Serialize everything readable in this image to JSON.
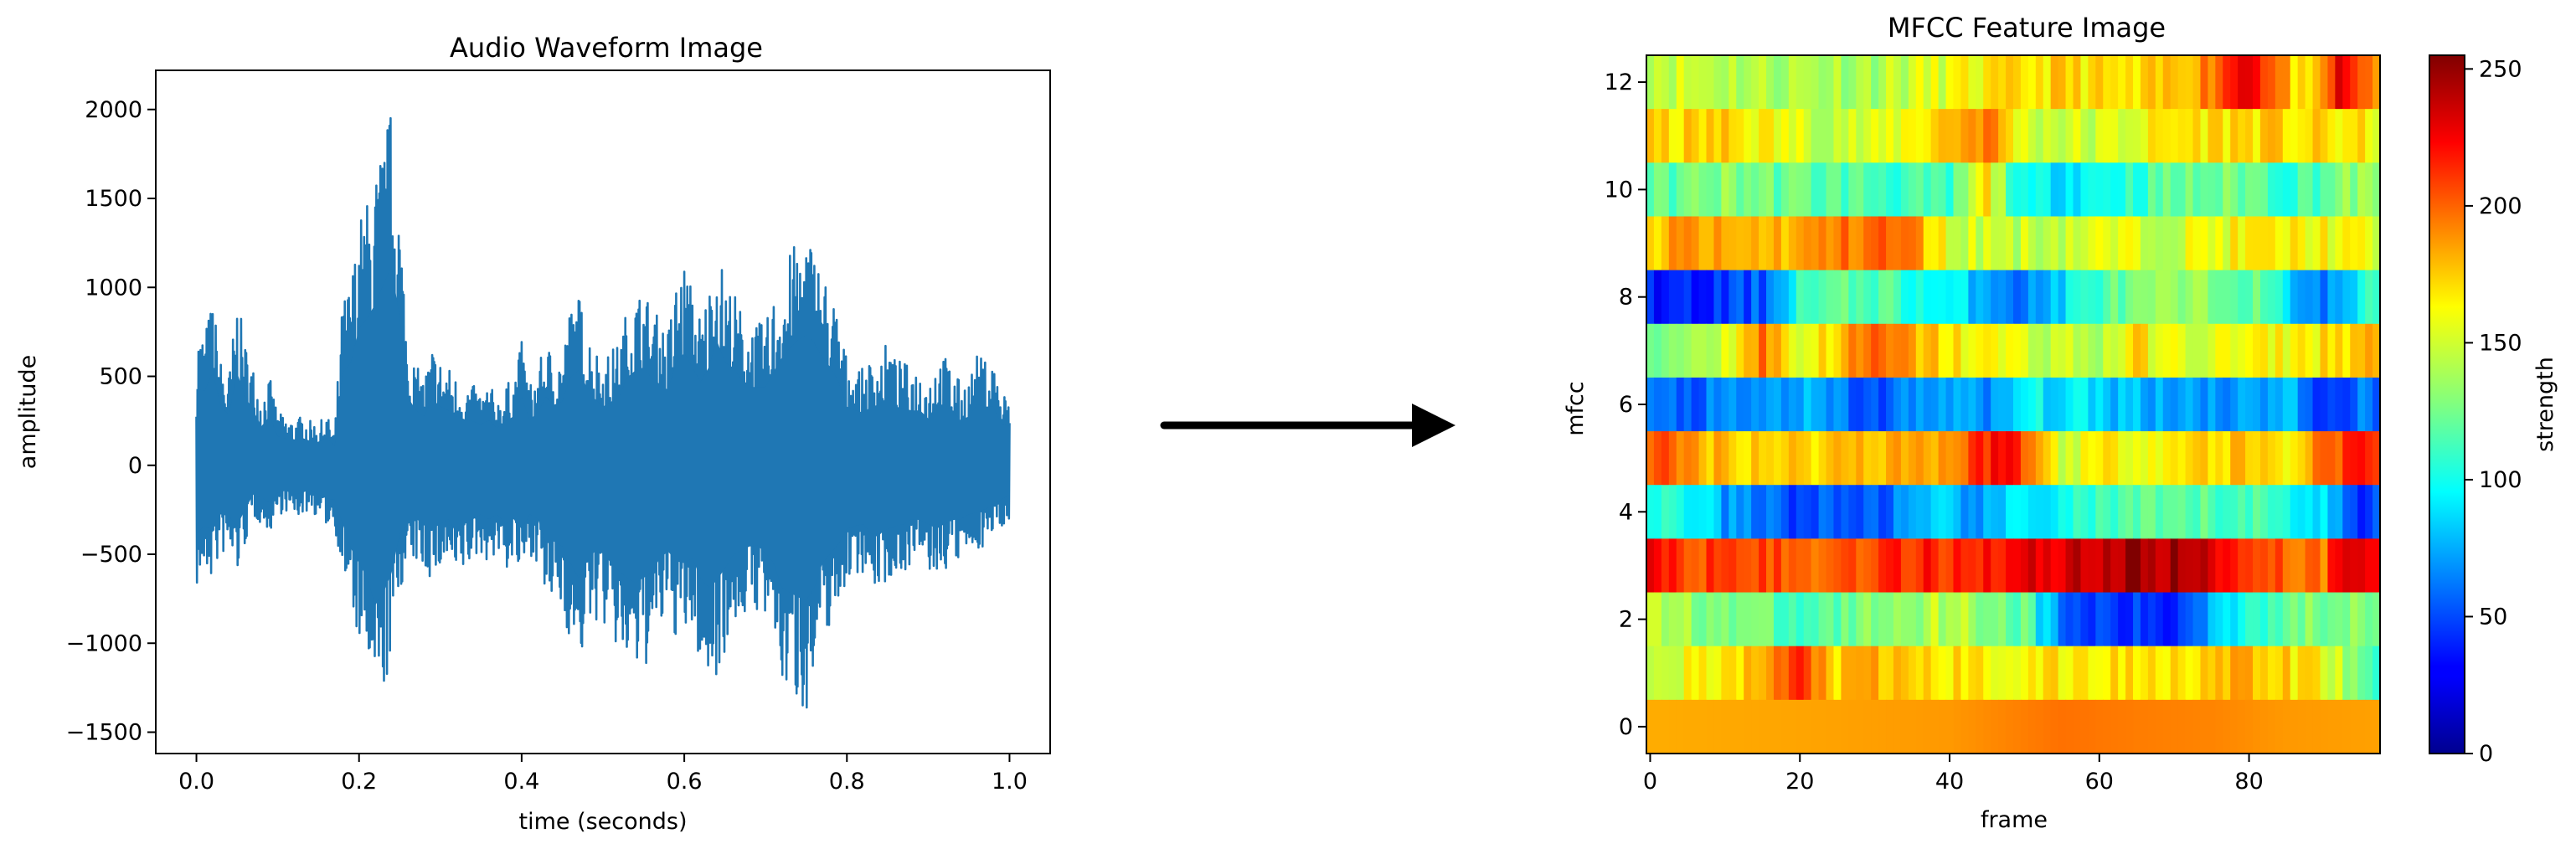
{
  "chart_data": [
    {
      "type": "line",
      "title": "Audio Waveform Image",
      "xlabel": "time (seconds)",
      "ylabel": "amplitude",
      "xlim": [
        -0.05,
        1.05
      ],
      "ylim": [
        -1620,
        2220
      ],
      "x_ticks": [
        0.0,
        0.2,
        0.4,
        0.6,
        0.8,
        1.0
      ],
      "y_ticks": [
        -1500,
        -1000,
        -500,
        0,
        500,
        1000,
        1500,
        2000
      ],
      "x_tick_labels": [
        "0.0",
        "0.2",
        "0.4",
        "0.6",
        "0.8",
        "1.0"
      ],
      "y_tick_labels": [
        "−1500",
        "−1000",
        "−500",
        "0",
        "500",
        "1000",
        "1500",
        "2000"
      ],
      "grid": false,
      "color": "#1f77b4",
      "series": [
        {
          "envelope_x": [
            0.0,
            0.01,
            0.02,
            0.03,
            0.04,
            0.05,
            0.06,
            0.07,
            0.08,
            0.09,
            0.1,
            0.11,
            0.12,
            0.13,
            0.14,
            0.15,
            0.16,
            0.17,
            0.18,
            0.19,
            0.2,
            0.21,
            0.22,
            0.23,
            0.24,
            0.25,
            0.26,
            0.27,
            0.28,
            0.29,
            0.3,
            0.31,
            0.32,
            0.33,
            0.34,
            0.35,
            0.36,
            0.37,
            0.38,
            0.39,
            0.4,
            0.41,
            0.42,
            0.43,
            0.44,
            0.45,
            0.46,
            0.47,
            0.48,
            0.49,
            0.5,
            0.51,
            0.52,
            0.53,
            0.54,
            0.55,
            0.56,
            0.57,
            0.58,
            0.59,
            0.6,
            0.61,
            0.62,
            0.63,
            0.64,
            0.65,
            0.66,
            0.67,
            0.68,
            0.69,
            0.7,
            0.71,
            0.72,
            0.73,
            0.74,
            0.75,
            0.76,
            0.77,
            0.78,
            0.79,
            0.8,
            0.81,
            0.82,
            0.83,
            0.84,
            0.85,
            0.86,
            0.87,
            0.88,
            0.89,
            0.9,
            0.91,
            0.92,
            0.93,
            0.94,
            0.95,
            0.96,
            0.97,
            0.98,
            0.99,
            1.0
          ],
          "envelope_max": [
            780,
            760,
            950,
            600,
            520,
            950,
            700,
            560,
            400,
            500,
            300,
            270,
            260,
            280,
            250,
            240,
            280,
            200,
            950,
            1050,
            1400,
            1500,
            1650,
            1850,
            2030,
            1500,
            700,
            560,
            500,
            680,
            600,
            560,
            500,
            470,
            450,
            420,
            460,
            380,
            450,
            500,
            700,
            460,
            550,
            700,
            620,
            650,
            900,
            970,
            800,
            680,
            600,
            650,
            700,
            900,
            970,
            1000,
            890,
            830,
            770,
            1050,
            1150,
            1000,
            850,
            1000,
            1280,
            1050,
            1000,
            880,
            800,
            800,
            800,
            960,
            1100,
            1200,
            1280,
            1330,
            1250,
            1100,
            1000,
            850,
            600,
            560,
            540,
            600,
            620,
            700,
            600,
            580,
            560,
            560,
            480,
            620,
            620,
            560,
            460,
            500,
            620,
            600,
            600,
            420,
            400
          ],
          "envelope_min": [
            -700,
            -620,
            -650,
            -500,
            -520,
            -620,
            -450,
            -300,
            -330,
            -380,
            -280,
            -260,
            -300,
            -280,
            -250,
            -300,
            -340,
            -350,
            -600,
            -850,
            -1000,
            -1150,
            -1430,
            -1300,
            -1100,
            -700,
            -600,
            -550,
            -600,
            -650,
            -600,
            -550,
            -700,
            -600,
            -550,
            -500,
            -550,
            -500,
            -600,
            -550,
            -650,
            -500,
            -550,
            -800,
            -780,
            -830,
            -1000,
            -1150,
            -980,
            -880,
            -900,
            -1000,
            -1080,
            -1150,
            -1200,
            -1150,
            -1100,
            -950,
            -880,
            -980,
            -1000,
            -950,
            -1150,
            -1250,
            -1180,
            -1050,
            -920,
            -870,
            -830,
            -820,
            -900,
            -1000,
            -1250,
            -1300,
            -1350,
            -1380,
            -1250,
            -1000,
            -900,
            -800,
            -650,
            -620,
            -600,
            -700,
            -700,
            -650,
            -620,
            -600,
            -550,
            -560,
            -600,
            -650,
            -600,
            -560,
            -550,
            -500,
            -480,
            -450,
            -400,
            -350,
            -300
          ]
        }
      ]
    },
    {
      "type": "heatmap",
      "title": "MFCC Feature Image",
      "xlabel": "frame",
      "ylabel": "mfcc",
      "xlim": [
        -0.5,
        97.5
      ],
      "ylim": [
        -0.5,
        12.5
      ],
      "x_ticks": [
        0,
        20,
        40,
        60,
        80
      ],
      "y_ticks": [
        0,
        2,
        4,
        6,
        8,
        10,
        12
      ],
      "colormap": "jet",
      "colorbar": {
        "label": "strength",
        "ticks": [
          0,
          50,
          100,
          150,
          200,
          250
        ],
        "range": [
          0,
          255
        ]
      },
      "frames": 98,
      "rows": 13,
      "row_profiles": [
        {
          "row": 12,
          "x": [
            0,
            15,
            30,
            45,
            55,
            65,
            70,
            75,
            80,
            83,
            88,
            92,
            97
          ],
          "v": [
            150,
            140,
            140,
            160,
            170,
            160,
            175,
            195,
            240,
            200,
            150,
            225,
            190
          ]
        },
        {
          "row": 11,
          "x": [
            0,
            10,
            20,
            30,
            45,
            50,
            60,
            70,
            80,
            90,
            97
          ],
          "v": [
            165,
            170,
            150,
            145,
            195,
            150,
            145,
            165,
            170,
            165,
            160
          ]
        },
        {
          "row": 10,
          "x": [
            0,
            10,
            20,
            30,
            40,
            45,
            50,
            60,
            70,
            80,
            85,
            90,
            95,
            97
          ],
          "v": [
            115,
            130,
            120,
            115,
            105,
            165,
            90,
            100,
            120,
            125,
            110,
            120,
            135,
            120
          ]
        },
        {
          "row": 9,
          "x": [
            0,
            5,
            10,
            20,
            30,
            35,
            40,
            50,
            60,
            70,
            80,
            90,
            97
          ],
          "v": [
            170,
            185,
            175,
            180,
            200,
            190,
            150,
            145,
            150,
            150,
            160,
            160,
            150
          ]
        },
        {
          "row": 8,
          "x": [
            0,
            5,
            10,
            15,
            20,
            30,
            40,
            45,
            50,
            60,
            70,
            80,
            85,
            90,
            95,
            97
          ],
          "v": [
            40,
            35,
            45,
            55,
            110,
            120,
            90,
            80,
            60,
            115,
            130,
            125,
            90,
            60,
            95,
            110
          ]
        },
        {
          "row": 7,
          "x": [
            0,
            10,
            15,
            20,
            25,
            30,
            40,
            50,
            60,
            65,
            70,
            80,
            90,
            97
          ],
          "v": [
            125,
            150,
            195,
            150,
            175,
            195,
            165,
            150,
            140,
            165,
            150,
            155,
            165,
            180
          ]
        },
        {
          "row": 6,
          "x": [
            0,
            10,
            20,
            30,
            40,
            45,
            50,
            60,
            70,
            80,
            85,
            90,
            95,
            97
          ],
          "v": [
            55,
            60,
            75,
            50,
            80,
            60,
            95,
            85,
            75,
            70,
            85,
            35,
            65,
            60
          ]
        },
        {
          "row": 5,
          "x": [
            0,
            5,
            10,
            20,
            30,
            40,
            47,
            55,
            60,
            70,
            80,
            85,
            90,
            95,
            97
          ],
          "v": [
            205,
            185,
            175,
            170,
            180,
            185,
            230,
            150,
            160,
            165,
            175,
            160,
            200,
            215,
            205
          ]
        },
        {
          "row": 4,
          "x": [
            0,
            5,
            10,
            15,
            20,
            30,
            40,
            45,
            50,
            60,
            70,
            80,
            90,
            94,
            97
          ],
          "v": [
            110,
            100,
            70,
            60,
            50,
            55,
            80,
            70,
            90,
            110,
            115,
            115,
            90,
            45,
            55
          ]
        },
        {
          "row": 3,
          "x": [
            0,
            5,
            10,
            20,
            30,
            40,
            50,
            55,
            60,
            65,
            70,
            75,
            80,
            85,
            90,
            93,
            97
          ],
          "v": [
            225,
            200,
            220,
            195,
            210,
            215,
            225,
            235,
            240,
            245,
            245,
            230,
            215,
            200,
            195,
            240,
            235
          ]
        },
        {
          "row": 2,
          "x": [
            0,
            10,
            20,
            30,
            40,
            50,
            55,
            60,
            70,
            75,
            80,
            90,
            97
          ],
          "v": [
            140,
            130,
            110,
            130,
            145,
            120,
            55,
            45,
            40,
            80,
            110,
            130,
            135
          ]
        },
        {
          "row": 1,
          "x": [
            0,
            10,
            15,
            20,
            25,
            30,
            40,
            50,
            60,
            70,
            80,
            90,
            95,
            97
          ],
          "v": [
            150,
            160,
            180,
            210,
            170,
            175,
            165,
            160,
            165,
            170,
            175,
            160,
            120,
            100
          ]
        },
        {
          "row": 0,
          "x": [
            0,
            20,
            40,
            55,
            65,
            75,
            85,
            97
          ],
          "v": [
            180,
            182,
            185,
            195,
            192,
            190,
            185,
            183
          ]
        }
      ]
    }
  ]
}
